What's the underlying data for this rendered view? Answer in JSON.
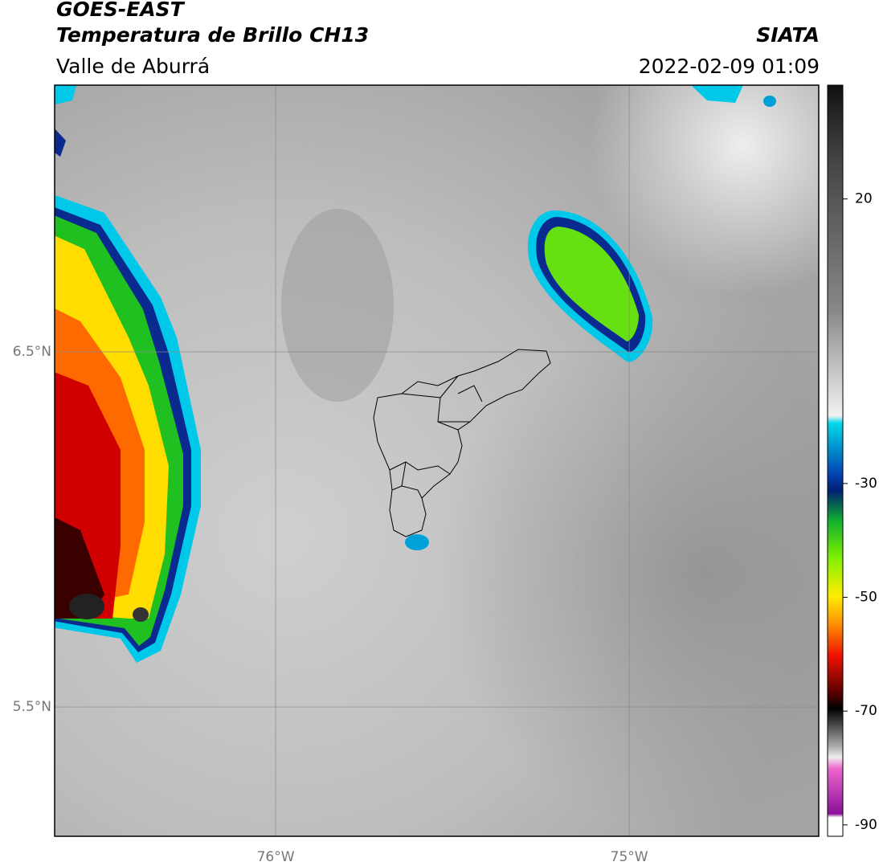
{
  "header": {
    "satellite": "GOES-EAST",
    "product": "Temperatura de Brillo CH13",
    "region": "Valle de Aburrá",
    "source": "SIATA",
    "datetime": "2022-02-09 01:09"
  },
  "map": {
    "xlim": [
      -76.625,
      -74.464
    ],
    "ylim": [
      5.136,
      7.251
    ],
    "xticks": [
      {
        "value": -76,
        "label": "76°W"
      },
      {
        "value": -75,
        "label": "75°W"
      }
    ],
    "yticks": [
      {
        "value": 6.5,
        "label": "6.5°N"
      },
      {
        "value": 5.5,
        "label": "5.5°N"
      }
    ]
  },
  "colorbar": {
    "lim": [
      -92,
      40
    ],
    "ticks": [
      20,
      -30,
      -50,
      -70,
      -90
    ]
  }
}
